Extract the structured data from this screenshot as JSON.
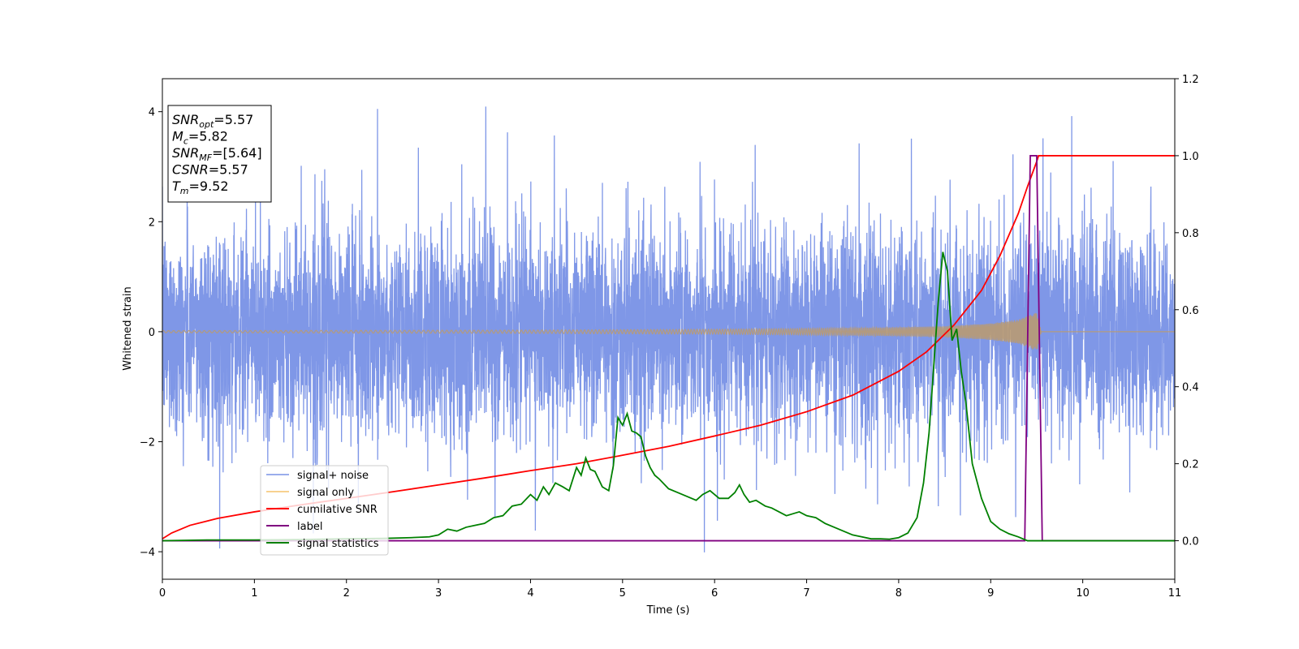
{
  "chart_data": {
    "type": "line",
    "xlabel": "Time (s)",
    "ylabel": "Whitened strain",
    "xlim": [
      0,
      11
    ],
    "ylim": [
      -4.5,
      4.6
    ],
    "y2lim": [
      -0.1,
      1.2
    ],
    "x_ticks": [
      0,
      1,
      2,
      3,
      4,
      5,
      6,
      7,
      8,
      9,
      10,
      11
    ],
    "y_ticks": [
      -4,
      -2,
      0,
      2,
      4
    ],
    "y2_ticks": [
      0.0,
      0.2,
      0.4,
      0.6,
      0.8,
      1.0,
      1.2
    ],
    "legend_position": "lower-left",
    "annotation": [
      {
        "main": "SNR",
        "sub": "opt",
        "rest": "=5.57"
      },
      {
        "main": "M",
        "sub": "c",
        "rest": "=5.82"
      },
      {
        "main": "SNR",
        "sub": "MF",
        "rest": "=[5.64]"
      },
      {
        "main": "CSNR",
        "sub": "",
        "rest": "=5.57"
      },
      {
        "main": "T",
        "sub": "m",
        "rest": "=9.52"
      }
    ],
    "series": [
      {
        "name": "signal+ noise",
        "axis": "left",
        "color": "#7891e6",
        "noise_std": 1.0,
        "noise_range": [
          -4.1,
          4.15
        ],
        "x_range": [
          0,
          11
        ]
      },
      {
        "name": "signal only",
        "axis": "left",
        "color": "#f5c26b",
        "envelope": {
          "x": [
            0,
            2,
            4,
            6,
            7,
            8,
            8.5,
            9,
            9.3,
            9.5,
            9.55,
            11
          ],
          "amplitude": [
            0.02,
            0.025,
            0.03,
            0.045,
            0.06,
            0.08,
            0.1,
            0.15,
            0.22,
            0.35,
            0.0,
            0.0
          ]
        }
      },
      {
        "name": "cumilative SNR",
        "axis": "right",
        "color": "#ff0000",
        "x": [
          0,
          0.1,
          0.3,
          0.6,
          1,
          1.5,
          2,
          2.5,
          3,
          3.5,
          4,
          4.5,
          5,
          5.5,
          6,
          6.5,
          7,
          7.5,
          8,
          8.3,
          8.6,
          8.9,
          9.1,
          9.3,
          9.4,
          9.5,
          9.52,
          11
        ],
        "y": [
          0.005,
          0.02,
          0.04,
          0.058,
          0.075,
          0.093,
          0.11,
          0.127,
          0.145,
          0.163,
          0.182,
          0.2,
          0.222,
          0.245,
          0.272,
          0.3,
          0.335,
          0.378,
          0.44,
          0.49,
          0.56,
          0.65,
          0.74,
          0.85,
          0.92,
          0.985,
          1.0,
          1.0
        ]
      },
      {
        "name": "label",
        "axis": "right",
        "color": "#800080",
        "x": [
          0,
          9.37,
          9.43,
          9.5,
          9.56,
          11
        ],
        "y": [
          0,
          0,
          1.0,
          1.0,
          0,
          0
        ]
      },
      {
        "name": "signal statistics",
        "axis": "right",
        "color": "#008000",
        "x": [
          0,
          0.5,
          1,
          1.5,
          2,
          2.4,
          2.7,
          2.9,
          3.0,
          3.1,
          3.2,
          3.3,
          3.4,
          3.5,
          3.6,
          3.7,
          3.8,
          3.9,
          4.0,
          4.07,
          4.14,
          4.2,
          4.27,
          4.35,
          4.42,
          4.5,
          4.55,
          4.6,
          4.65,
          4.7,
          4.78,
          4.85,
          4.9,
          4.95,
          5.0,
          5.05,
          5.1,
          5.15,
          5.2,
          5.25,
          5.3,
          5.35,
          5.4,
          5.5,
          5.6,
          5.7,
          5.8,
          5.87,
          5.95,
          6.05,
          6.15,
          6.22,
          6.27,
          6.32,
          6.38,
          6.45,
          6.55,
          6.62,
          6.7,
          6.78,
          6.85,
          6.92,
          7.0,
          7.1,
          7.2,
          7.3,
          7.4,
          7.5,
          7.6,
          7.7,
          7.8,
          7.9,
          8.0,
          8.1,
          8.2,
          8.27,
          8.33,
          8.38,
          8.43,
          8.48,
          8.53,
          8.58,
          8.63,
          8.68,
          8.73,
          8.8,
          8.9,
          9.0,
          9.1,
          9.2,
          9.3,
          9.4,
          9.6,
          10,
          11
        ],
        "y": [
          0.0,
          0.002,
          0.002,
          0.003,
          0.005,
          0.006,
          0.008,
          0.01,
          0.015,
          0.03,
          0.025,
          0.035,
          0.04,
          0.045,
          0.06,
          0.065,
          0.09,
          0.095,
          0.12,
          0.105,
          0.14,
          0.12,
          0.15,
          0.14,
          0.13,
          0.19,
          0.17,
          0.215,
          0.185,
          0.18,
          0.14,
          0.13,
          0.195,
          0.32,
          0.3,
          0.33,
          0.285,
          0.28,
          0.27,
          0.22,
          0.19,
          0.17,
          0.16,
          0.135,
          0.125,
          0.115,
          0.105,
          0.12,
          0.13,
          0.11,
          0.11,
          0.125,
          0.145,
          0.12,
          0.1,
          0.105,
          0.09,
          0.085,
          0.075,
          0.065,
          0.07,
          0.075,
          0.065,
          0.06,
          0.045,
          0.035,
          0.025,
          0.015,
          0.01,
          0.005,
          0.005,
          0.004,
          0.008,
          0.02,
          0.06,
          0.15,
          0.28,
          0.45,
          0.62,
          0.75,
          0.7,
          0.52,
          0.55,
          0.44,
          0.36,
          0.2,
          0.11,
          0.05,
          0.03,
          0.018,
          0.01,
          0.0,
          0.0,
          0.0,
          0.0
        ]
      }
    ]
  }
}
